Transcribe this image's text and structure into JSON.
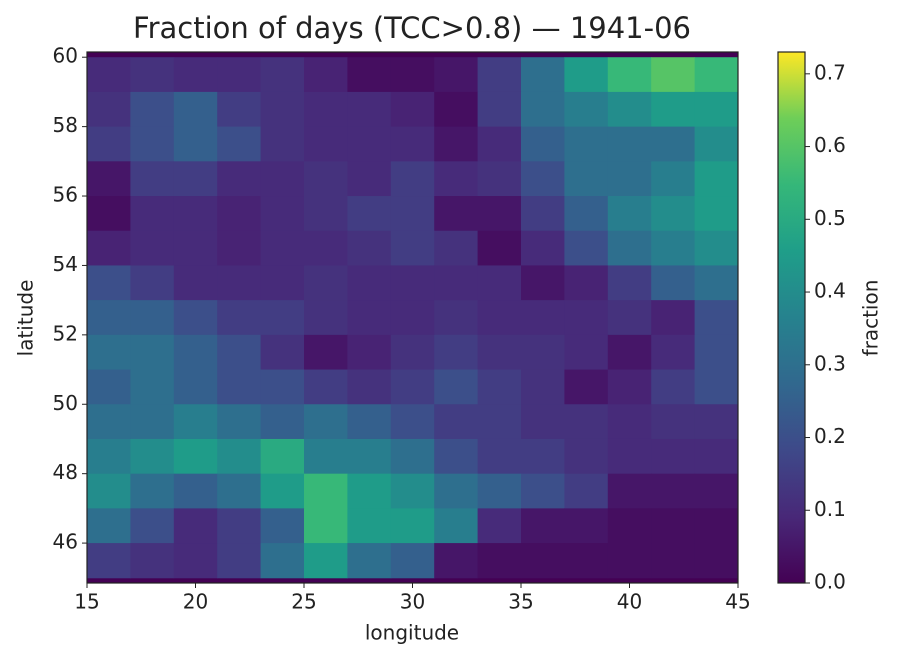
{
  "chart_data": {
    "type": "heatmap",
    "title": "Fraction of days (TCC>0.8) — 1941-06",
    "x_label": "longitude",
    "y_label": "latitude",
    "colorbar_label": "fraction",
    "colormap": "viridis",
    "x": [
      16,
      18,
      20,
      22,
      24,
      26,
      28,
      30,
      32,
      34,
      36,
      38,
      40,
      42,
      44
    ],
    "y": [
      59.5,
      58.5,
      57.5,
      56.5,
      55.5,
      54.5,
      53.5,
      52.5,
      51.5,
      50.5,
      49.5,
      48.5,
      47.5,
      46.5,
      45.5
    ],
    "z": [
      [
        0.1,
        0.12,
        0.1,
        0.1,
        0.12,
        0.08,
        0.03,
        0.03,
        0.05,
        0.15,
        0.3,
        0.45,
        0.55,
        0.6,
        0.55
      ],
      [
        0.12,
        0.2,
        0.25,
        0.15,
        0.12,
        0.1,
        0.1,
        0.08,
        0.03,
        0.15,
        0.3,
        0.35,
        0.4,
        0.45,
        0.45
      ],
      [
        0.15,
        0.2,
        0.25,
        0.2,
        0.12,
        0.1,
        0.1,
        0.1,
        0.05,
        0.1,
        0.25,
        0.3,
        0.3,
        0.3,
        0.4
      ],
      [
        0.05,
        0.15,
        0.15,
        0.1,
        0.1,
        0.12,
        0.1,
        0.15,
        0.1,
        0.12,
        0.2,
        0.3,
        0.3,
        0.35,
        0.45
      ],
      [
        0.03,
        0.1,
        0.1,
        0.08,
        0.1,
        0.12,
        0.15,
        0.15,
        0.05,
        0.05,
        0.15,
        0.25,
        0.35,
        0.4,
        0.45
      ],
      [
        0.08,
        0.1,
        0.1,
        0.08,
        0.1,
        0.1,
        0.12,
        0.15,
        0.12,
        0.03,
        0.1,
        0.2,
        0.3,
        0.35,
        0.4
      ],
      [
        0.2,
        0.15,
        0.1,
        0.1,
        0.1,
        0.12,
        0.1,
        0.1,
        0.1,
        0.1,
        0.05,
        0.08,
        0.15,
        0.25,
        0.3
      ],
      [
        0.25,
        0.25,
        0.2,
        0.15,
        0.15,
        0.12,
        0.1,
        0.1,
        0.12,
        0.1,
        0.1,
        0.1,
        0.12,
        0.08,
        0.2
      ],
      [
        0.3,
        0.3,
        0.25,
        0.2,
        0.12,
        0.05,
        0.08,
        0.12,
        0.15,
        0.12,
        0.12,
        0.1,
        0.05,
        0.1,
        0.2
      ],
      [
        0.25,
        0.3,
        0.25,
        0.2,
        0.2,
        0.15,
        0.12,
        0.15,
        0.2,
        0.15,
        0.12,
        0.05,
        0.08,
        0.15,
        0.2
      ],
      [
        0.3,
        0.3,
        0.35,
        0.3,
        0.25,
        0.3,
        0.25,
        0.2,
        0.15,
        0.15,
        0.12,
        0.12,
        0.1,
        0.12,
        0.12
      ],
      [
        0.35,
        0.4,
        0.45,
        0.4,
        0.5,
        0.35,
        0.35,
        0.3,
        0.2,
        0.15,
        0.15,
        0.12,
        0.1,
        0.1,
        0.1
      ],
      [
        0.4,
        0.3,
        0.25,
        0.3,
        0.45,
        0.55,
        0.45,
        0.4,
        0.3,
        0.25,
        0.2,
        0.15,
        0.05,
        0.05,
        0.05
      ],
      [
        0.3,
        0.2,
        0.1,
        0.15,
        0.25,
        0.55,
        0.45,
        0.45,
        0.35,
        0.1,
        0.05,
        0.05,
        0.03,
        0.03,
        0.03
      ],
      [
        0.15,
        0.12,
        0.1,
        0.15,
        0.3,
        0.45,
        0.3,
        0.25,
        0.05,
        0.03,
        0.03,
        0.03,
        0.03,
        0.03,
        0.03
      ]
    ],
    "xlim": [
      15,
      45
    ],
    "ylim": [
      44.85,
      60.15
    ],
    "xticks": [
      15,
      20,
      25,
      30,
      35,
      40,
      45
    ],
    "yticks": [
      46,
      48,
      50,
      52,
      54,
      56,
      58,
      60
    ],
    "clim": [
      0,
      0.73
    ],
    "cticks": [
      0.0,
      0.1,
      0.2,
      0.3,
      0.4,
      0.5,
      0.6,
      0.7
    ]
  }
}
